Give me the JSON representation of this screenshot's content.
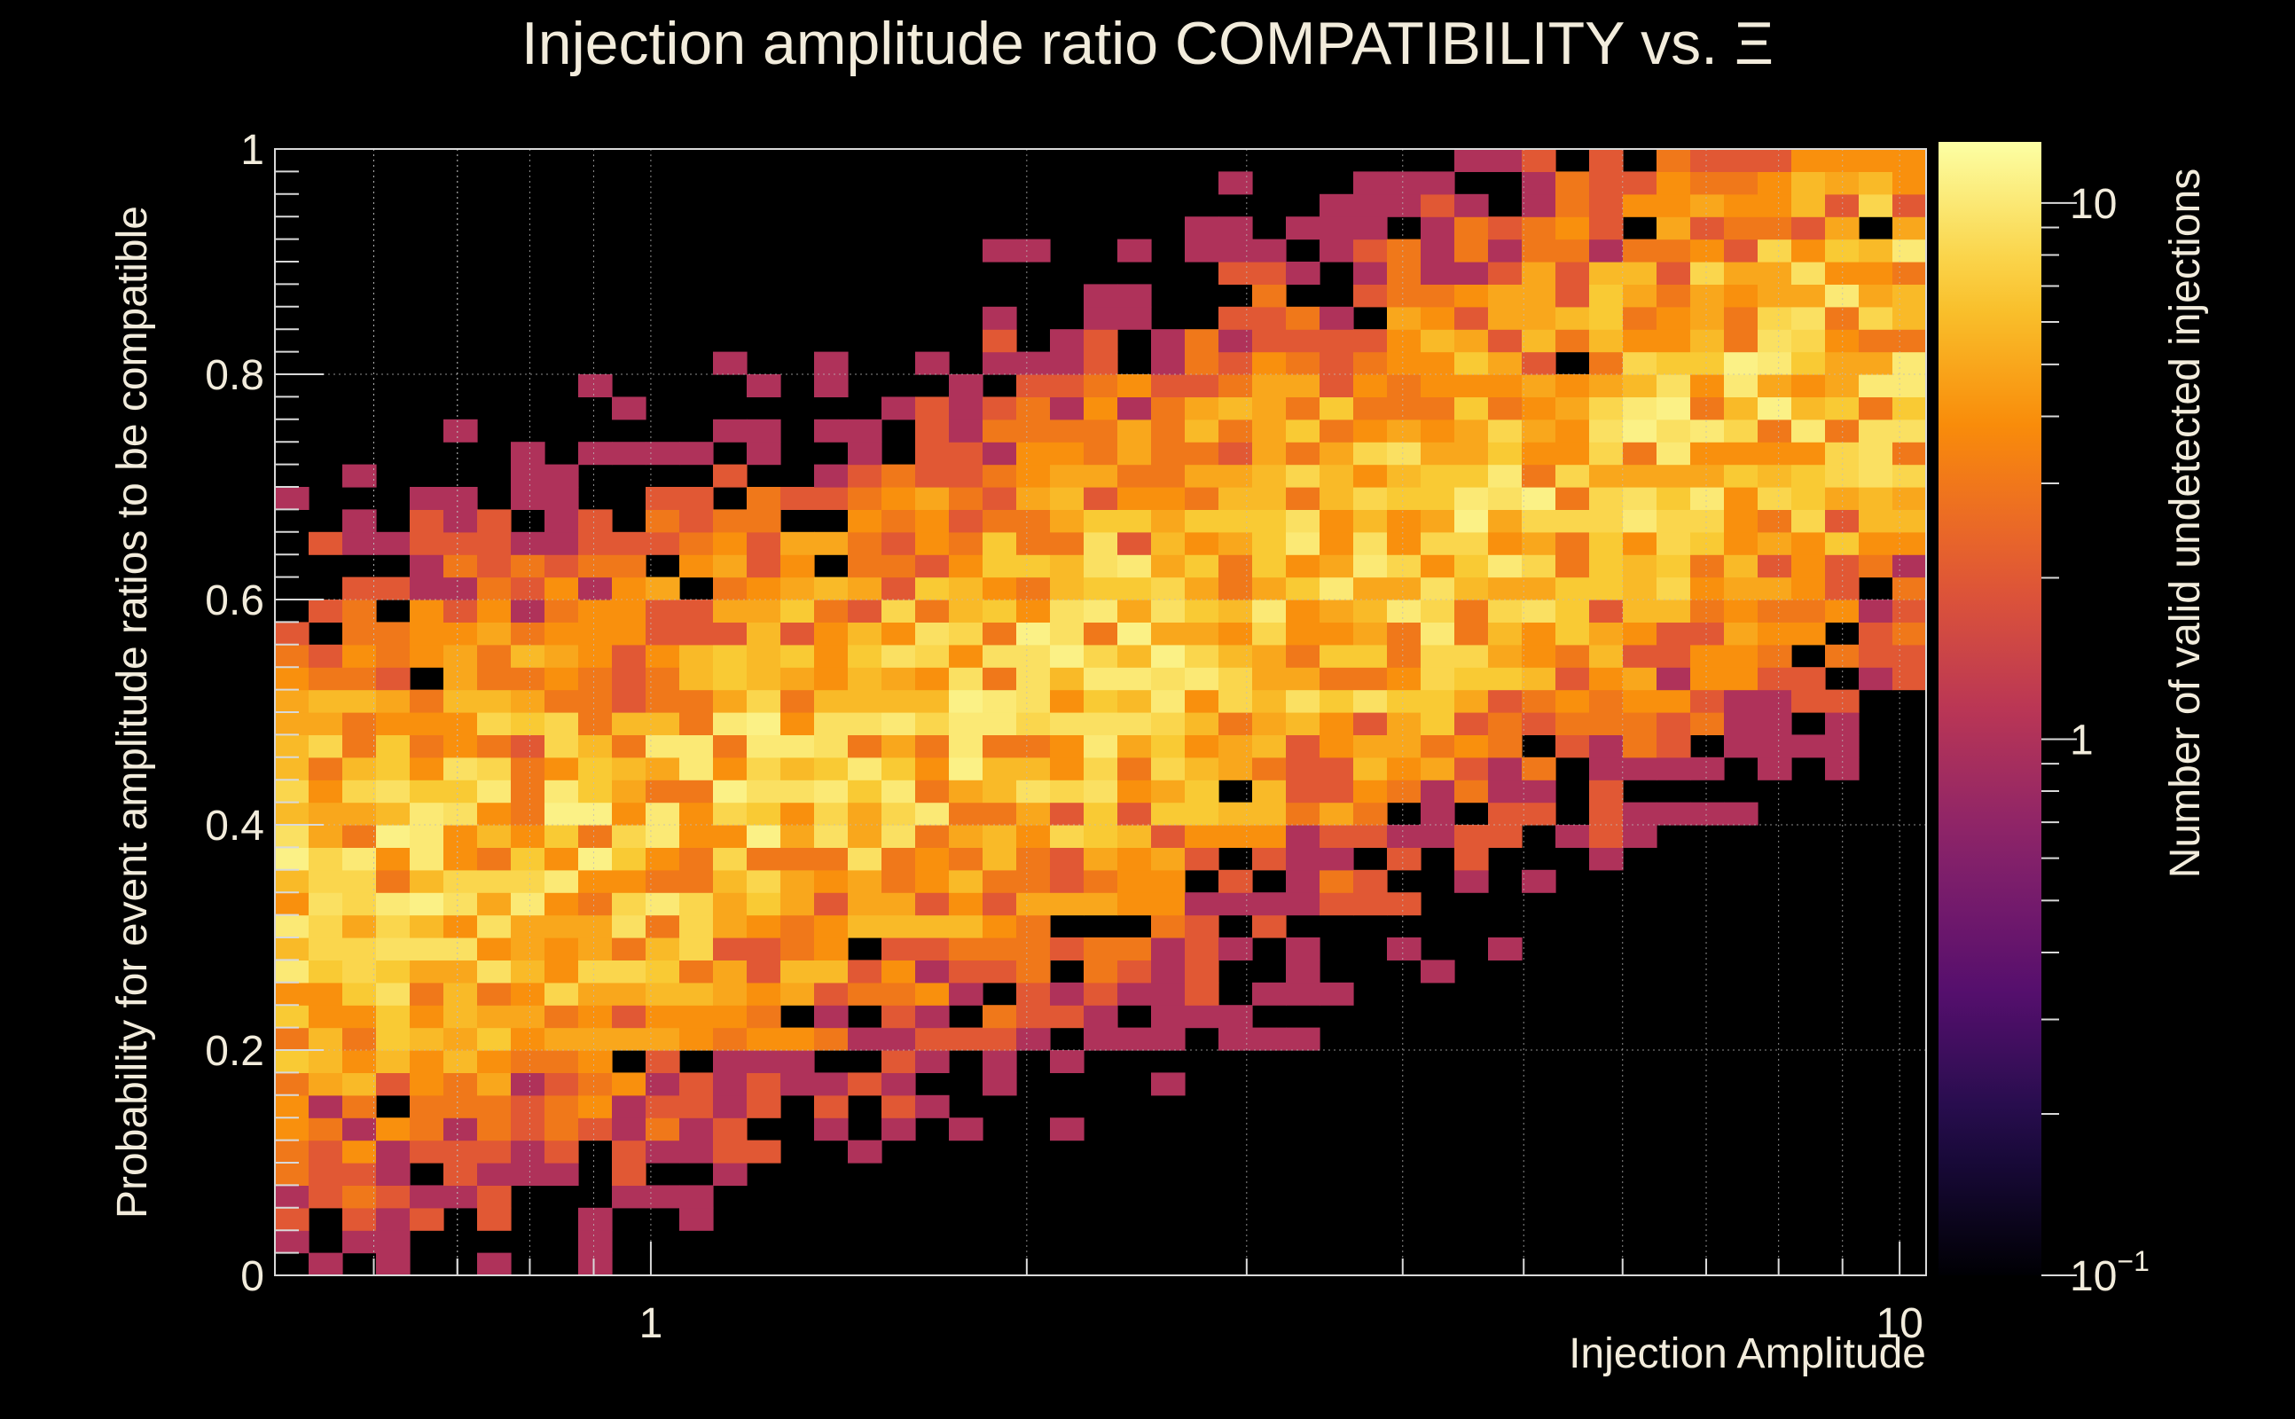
{
  "chart_data": {
    "type": "heatmap",
    "title": "Injection amplitude ratio COMPATIBILITY vs.  Ξ",
    "xlabel": "Injection Amplitude",
    "ylabel": "Probability for event amplitude ratios to be compatible",
    "zlabel": "Number of valid undetected injections",
    "x_scale": "log",
    "xlim": [
      0.5,
      10.5
    ],
    "ylim": [
      0,
      1
    ],
    "zlim": [
      0.1,
      13
    ],
    "z_scale": "log",
    "x_ticks": [
      {
        "value": 1,
        "label": "1"
      },
      {
        "value": 10,
        "label": "10"
      }
    ],
    "y_ticks": [
      {
        "value": 0,
        "label": "0"
      },
      {
        "value": 0.2,
        "label": "0.2"
      },
      {
        "value": 0.4,
        "label": "0.4"
      },
      {
        "value": 0.6,
        "label": "0.6"
      },
      {
        "value": 0.8,
        "label": "0.8"
      },
      {
        "value": 1,
        "label": "1"
      }
    ],
    "z_ticks": [
      {
        "value": 0.1,
        "label": "10",
        "exp": "−1"
      },
      {
        "value": 1,
        "label": "1",
        "exp": ""
      },
      {
        "value": 10,
        "label": "10",
        "exp": ""
      }
    ],
    "grid": true,
    "colormap": "inferno",
    "bins_x": 49,
    "bins_y": 50,
    "structure": "counts peak (~8-13) in a diagonal band: around y 0.2-0.55 at x 0.5-2, rising to y 0.7-0.95 at x 6-10; sparse/empty cells elsewhere"
  }
}
